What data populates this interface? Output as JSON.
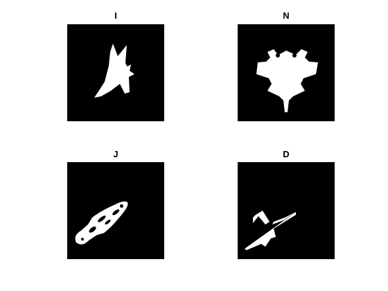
{
  "panels": [
    {
      "title": "I",
      "shape": "jet-silhouette-rotated"
    },
    {
      "title": "N",
      "shape": "jet-silhouette-topdown"
    },
    {
      "title": "J",
      "shape": "shuttle-silhouette-diagonal"
    },
    {
      "title": "D",
      "shape": "jet-silhouette-diagonal"
    }
  ],
  "colors": {
    "background": "#ffffff",
    "image_background": "#000000",
    "silhouette": "#ffffff",
    "title_text": "#000000"
  }
}
